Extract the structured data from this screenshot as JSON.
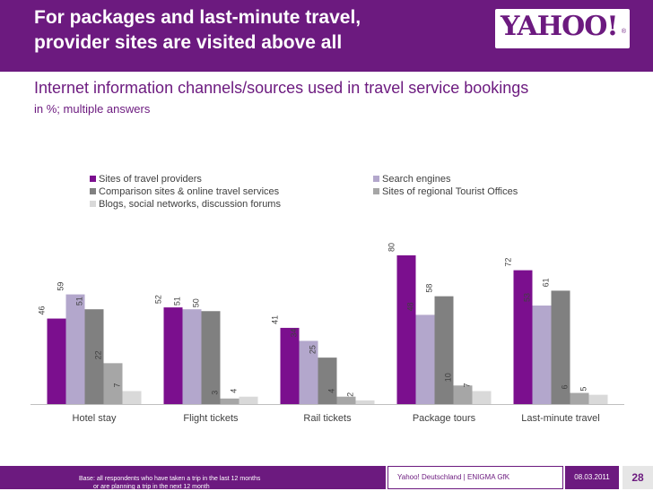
{
  "header": {
    "title_line1": "For packages and last-minute travel,",
    "title_line2": "provider sites are visited above all",
    "logo_text": "YAHOO!"
  },
  "subtitle": "Internet information channels/sources used in travel service bookings",
  "units_note": "in %; multiple answers",
  "footer": {
    "base_line1": "Base: all respondents who have taken a trip in the last 12 months",
    "base_line2": "or are planning a trip in the next 12 month",
    "source": "Yahoo! Deutschland | ENIGMA GfK",
    "date": "08.03.2011",
    "page": "28"
  },
  "chart_data": {
    "type": "bar",
    "categories": [
      "Hotel stay",
      "Flight tickets",
      "Rail tickets",
      "Package tours",
      "Last-minute travel"
    ],
    "series": [
      {
        "name": "Sites of travel providers",
        "color": "#7b0f8e",
        "values": [
          46,
          52,
          41,
          80,
          72
        ]
      },
      {
        "name": "Search engines",
        "color": "#b3a7cc",
        "values": [
          59,
          51,
          34,
          48,
          53
        ]
      },
      {
        "name": "Comparison sites & online travel services",
        "color": "#808080",
        "values": [
          51,
          50,
          25,
          58,
          61
        ]
      },
      {
        "name": "Sites of regional Tourist Offices",
        "color": "#a6a6a6",
        "values": [
          22,
          3,
          4,
          10,
          6
        ]
      },
      {
        "name": "Blogs, social networks, discussion forums",
        "color": "#d9d9d9",
        "values": [
          7,
          4,
          2,
          7,
          5
        ]
      }
    ],
    "ylim": [
      0,
      85
    ],
    "data_labels": true,
    "grid": false,
    "legend_position": "top"
  }
}
